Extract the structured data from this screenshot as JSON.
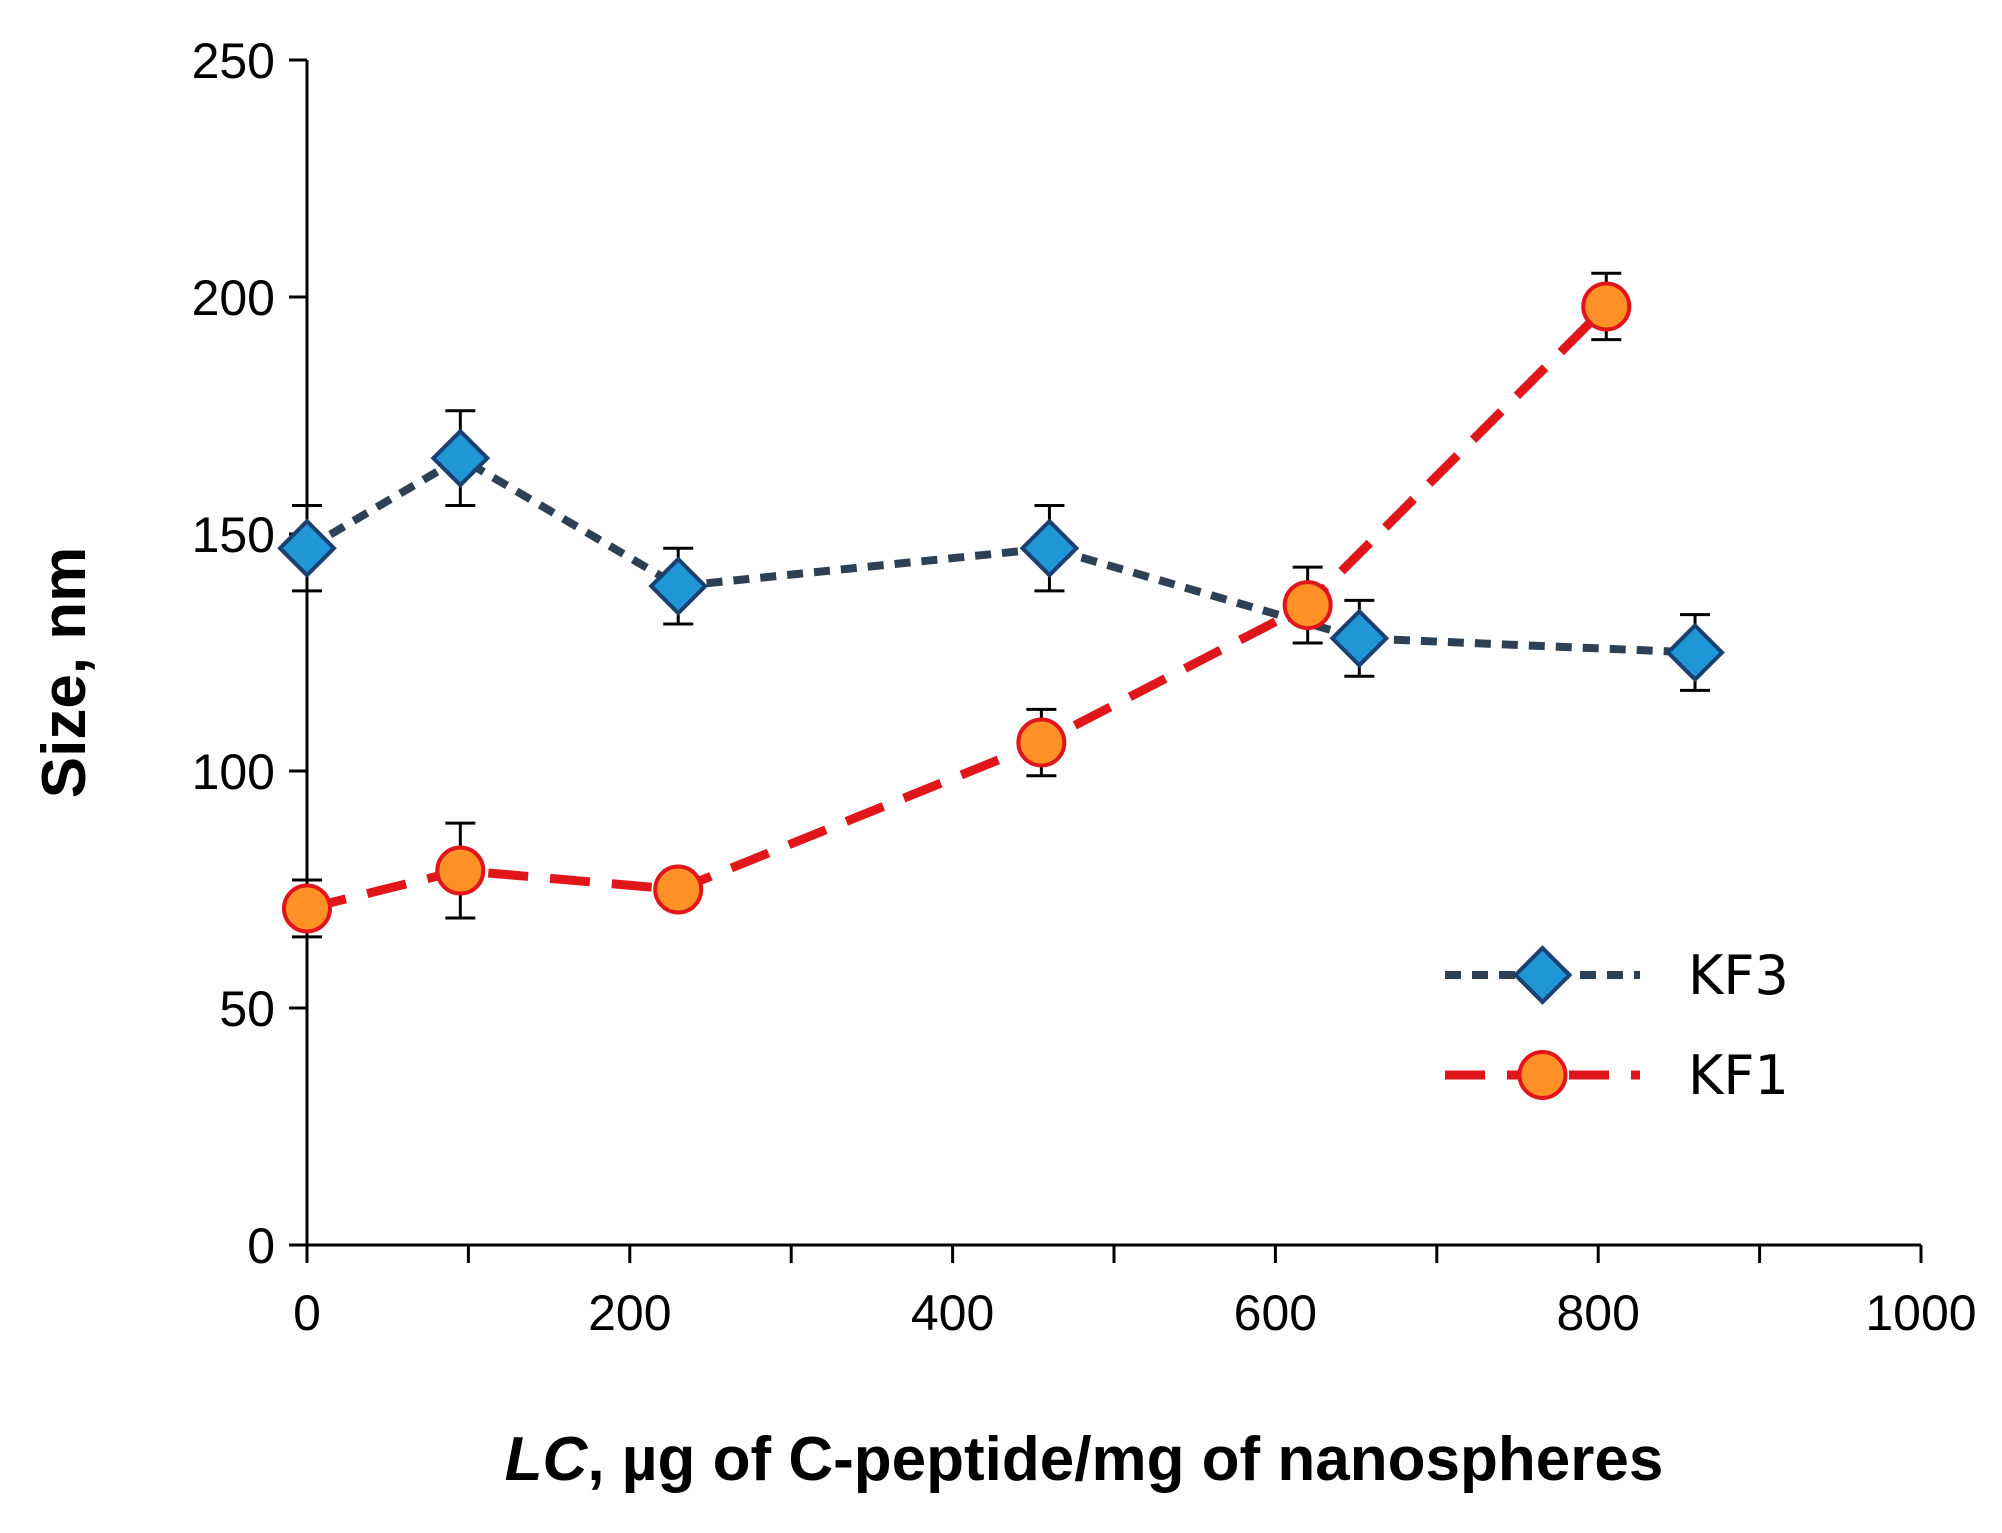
{
  "chart_data": {
    "type": "line",
    "title": "",
    "xlabel_italic": "LC",
    "xlabel_rest": ", µg of C-peptide/mg of nanospheres",
    "ylabel": "Size, nm",
    "xlim": [
      0,
      1000
    ],
    "ylim": [
      0,
      250
    ],
    "x_ticks": [
      0,
      200,
      400,
      600,
      800,
      1000
    ],
    "x_minor_ticks": [
      100,
      300,
      500,
      700,
      900
    ],
    "y_ticks": [
      0,
      50,
      100,
      150,
      200,
      250
    ],
    "grid": false,
    "legend_position": "bottom-right",
    "series": [
      {
        "name": "KF3",
        "marker": "diamond",
        "line_color": "#2e4053",
        "marker_fill": "#1f96d6",
        "marker_stroke": "#1b3f70",
        "dash": "dotted",
        "points": [
          {
            "x": 0,
            "y": 147,
            "err": 9
          },
          {
            "x": 95,
            "y": 166,
            "err": 10
          },
          {
            "x": 230,
            "y": 139,
            "err": 8
          },
          {
            "x": 460,
            "y": 147,
            "err": 9
          },
          {
            "x": 652,
            "y": 128,
            "err": 8
          },
          {
            "x": 860,
            "y": 125,
            "err": 8
          }
        ]
      },
      {
        "name": "KF1",
        "marker": "circle",
        "line_color": "#e0161b",
        "marker_fill": "#ff9126",
        "marker_stroke": "#e0161b",
        "dash": "dashed",
        "points": [
          {
            "x": 0,
            "y": 71,
            "err": 6
          },
          {
            "x": 95,
            "y": 79,
            "err": 10
          },
          {
            "x": 230,
            "y": 75,
            "err": 4
          },
          {
            "x": 455,
            "y": 106,
            "err": 7
          },
          {
            "x": 620,
            "y": 135,
            "err": 8
          },
          {
            "x": 805,
            "y": 198,
            "err": 7
          }
        ]
      }
    ]
  }
}
